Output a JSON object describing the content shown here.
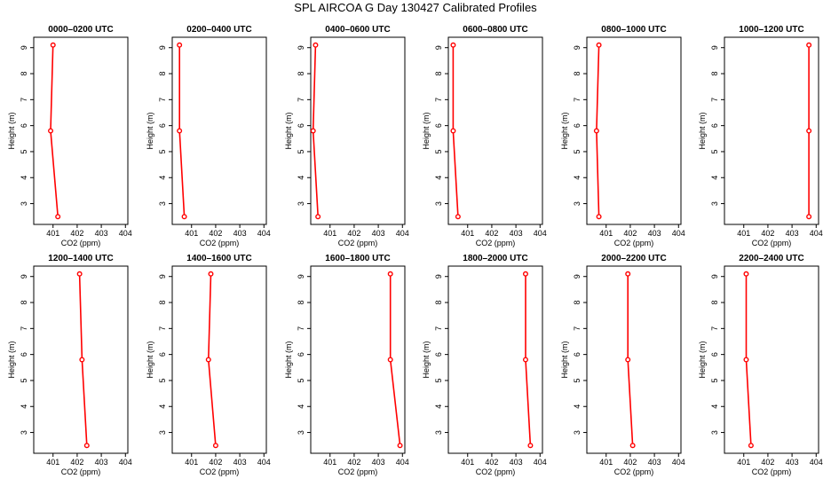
{
  "figure": {
    "title": "SPL AIRCOA G  Day 130427  Calibrated Profiles"
  },
  "chart_data": [
    {
      "type": "line",
      "title": "0000–0200 UTC",
      "xlabel": "CO2 (ppm)",
      "ylabel": "Height (m)",
      "xlim": [
        400.2,
        404.1
      ],
      "ylim": [
        2.2,
        9.4
      ],
      "xticks": [
        401,
        402,
        403,
        404
      ],
      "yticks": [
        3,
        4,
        5,
        6,
        7,
        8,
        9
      ],
      "grid": false,
      "series": [
        {
          "color": "#ff0000",
          "x": [
            401.2,
            400.9,
            401.0
          ],
          "y": [
            2.5,
            5.8,
            9.1
          ]
        }
      ]
    },
    {
      "type": "line",
      "title": "0200–0400 UTC",
      "xlabel": "CO2 (ppm)",
      "ylabel": "Height (m)",
      "xlim": [
        400.2,
        404.1
      ],
      "ylim": [
        2.2,
        9.4
      ],
      "xticks": [
        401,
        402,
        403,
        404
      ],
      "yticks": [
        3,
        4,
        5,
        6,
        7,
        8,
        9
      ],
      "grid": false,
      "series": [
        {
          "color": "#ff0000",
          "x": [
            400.7,
            400.5,
            400.5
          ],
          "y": [
            2.5,
            5.8,
            9.1
          ]
        }
      ]
    },
    {
      "type": "line",
      "title": "0400–0600 UTC",
      "xlabel": "CO2 (ppm)",
      "ylabel": "Height (m)",
      "xlim": [
        400.2,
        404.1
      ],
      "ylim": [
        2.2,
        9.4
      ],
      "xticks": [
        401,
        402,
        403,
        404
      ],
      "yticks": [
        3,
        4,
        5,
        6,
        7,
        8,
        9
      ],
      "grid": false,
      "series": [
        {
          "color": "#ff0000",
          "x": [
            400.5,
            400.3,
            400.4
          ],
          "y": [
            2.5,
            5.8,
            9.1
          ]
        }
      ]
    },
    {
      "type": "line",
      "title": "0600–0800 UTC",
      "xlabel": "CO2 (ppm)",
      "ylabel": "Height (m)",
      "xlim": [
        400.2,
        404.1
      ],
      "ylim": [
        2.2,
        9.4
      ],
      "xticks": [
        401,
        402,
        403,
        404
      ],
      "yticks": [
        3,
        4,
        5,
        6,
        7,
        8,
        9
      ],
      "grid": false,
      "series": [
        {
          "color": "#ff0000",
          "x": [
            400.6,
            400.4,
            400.4
          ],
          "y": [
            2.5,
            5.8,
            9.1
          ]
        }
      ]
    },
    {
      "type": "line",
      "title": "0800–1000 UTC",
      "xlabel": "CO2 (ppm)",
      "ylabel": "Height (m)",
      "xlim": [
        400.2,
        404.1
      ],
      "ylim": [
        2.2,
        9.4
      ],
      "xticks": [
        401,
        402,
        403,
        404
      ],
      "yticks": [
        3,
        4,
        5,
        6,
        7,
        8,
        9
      ],
      "grid": false,
      "series": [
        {
          "color": "#ff0000",
          "x": [
            400.7,
            400.6,
            400.7
          ],
          "y": [
            2.5,
            5.8,
            9.1
          ]
        }
      ]
    },
    {
      "type": "line",
      "title": "1000–1200 UTC",
      "xlabel": "CO2 (ppm)",
      "ylabel": "Height (m)",
      "xlim": [
        400.2,
        404.1
      ],
      "ylim": [
        2.2,
        9.4
      ],
      "xticks": [
        401,
        402,
        403,
        404
      ],
      "yticks": [
        3,
        4,
        5,
        6,
        7,
        8,
        9
      ],
      "grid": false,
      "series": [
        {
          "color": "#ff0000",
          "x": [
            403.7,
            403.7,
            403.7
          ],
          "y": [
            2.5,
            5.8,
            9.1
          ]
        }
      ]
    },
    {
      "type": "line",
      "title": "1200–1400 UTC",
      "xlabel": "CO2 (ppm)",
      "ylabel": "Height (m)",
      "xlim": [
        400.2,
        404.1
      ],
      "ylim": [
        2.2,
        9.4
      ],
      "xticks": [
        401,
        402,
        403,
        404
      ],
      "yticks": [
        3,
        4,
        5,
        6,
        7,
        8,
        9
      ],
      "grid": false,
      "series": [
        {
          "color": "#ff0000",
          "x": [
            402.4,
            402.2,
            402.1
          ],
          "y": [
            2.5,
            5.8,
            9.1
          ]
        }
      ]
    },
    {
      "type": "line",
      "title": "1400–1600 UTC",
      "xlabel": "CO2 (ppm)",
      "ylabel": "Height (m)",
      "xlim": [
        400.2,
        404.1
      ],
      "ylim": [
        2.2,
        9.4
      ],
      "xticks": [
        401,
        402,
        403,
        404
      ],
      "yticks": [
        3,
        4,
        5,
        6,
        7,
        8,
        9
      ],
      "grid": false,
      "series": [
        {
          "color": "#ff0000",
          "x": [
            402.0,
            401.7,
            401.8
          ],
          "y": [
            2.5,
            5.8,
            9.1
          ]
        }
      ]
    },
    {
      "type": "line",
      "title": "1600–1800 UTC",
      "xlabel": "CO2 (ppm)",
      "ylabel": "Height (m)",
      "xlim": [
        400.2,
        404.1
      ],
      "ylim": [
        2.2,
        9.4
      ],
      "xticks": [
        401,
        402,
        403,
        404
      ],
      "yticks": [
        3,
        4,
        5,
        6,
        7,
        8,
        9
      ],
      "grid": false,
      "series": [
        {
          "color": "#ff0000",
          "x": [
            403.9,
            403.5,
            403.5
          ],
          "y": [
            2.5,
            5.8,
            9.1
          ]
        }
      ]
    },
    {
      "type": "line",
      "title": "1800–2000 UTC",
      "xlabel": "CO2 (ppm)",
      "ylabel": "Height (m)",
      "xlim": [
        400.2,
        404.1
      ],
      "ylim": [
        2.2,
        9.4
      ],
      "xticks": [
        401,
        402,
        403,
        404
      ],
      "yticks": [
        3,
        4,
        5,
        6,
        7,
        8,
        9
      ],
      "grid": false,
      "series": [
        {
          "color": "#ff0000",
          "x": [
            403.6,
            403.4,
            403.4
          ],
          "y": [
            2.5,
            5.8,
            9.1
          ]
        }
      ]
    },
    {
      "type": "line",
      "title": "2000–2200 UTC",
      "xlabel": "CO2 (ppm)",
      "ylabel": "Height (m)",
      "xlim": [
        400.2,
        404.1
      ],
      "ylim": [
        2.2,
        9.4
      ],
      "xticks": [
        401,
        402,
        403,
        404
      ],
      "yticks": [
        3,
        4,
        5,
        6,
        7,
        8,
        9
      ],
      "grid": false,
      "series": [
        {
          "color": "#ff0000",
          "x": [
            402.1,
            401.9,
            401.9
          ],
          "y": [
            2.5,
            5.8,
            9.1
          ]
        }
      ]
    },
    {
      "type": "line",
      "title": "2200–2400 UTC",
      "xlabel": "CO2 (ppm)",
      "ylabel": "Height (m)",
      "xlim": [
        400.2,
        404.1
      ],
      "ylim": [
        2.2,
        9.4
      ],
      "xticks": [
        401,
        402,
        403,
        404
      ],
      "yticks": [
        3,
        4,
        5,
        6,
        7,
        8,
        9
      ],
      "grid": false,
      "series": [
        {
          "color": "#ff0000",
          "x": [
            401.3,
            401.1,
            401.1
          ],
          "y": [
            2.5,
            5.8,
            9.1
          ]
        }
      ]
    }
  ]
}
